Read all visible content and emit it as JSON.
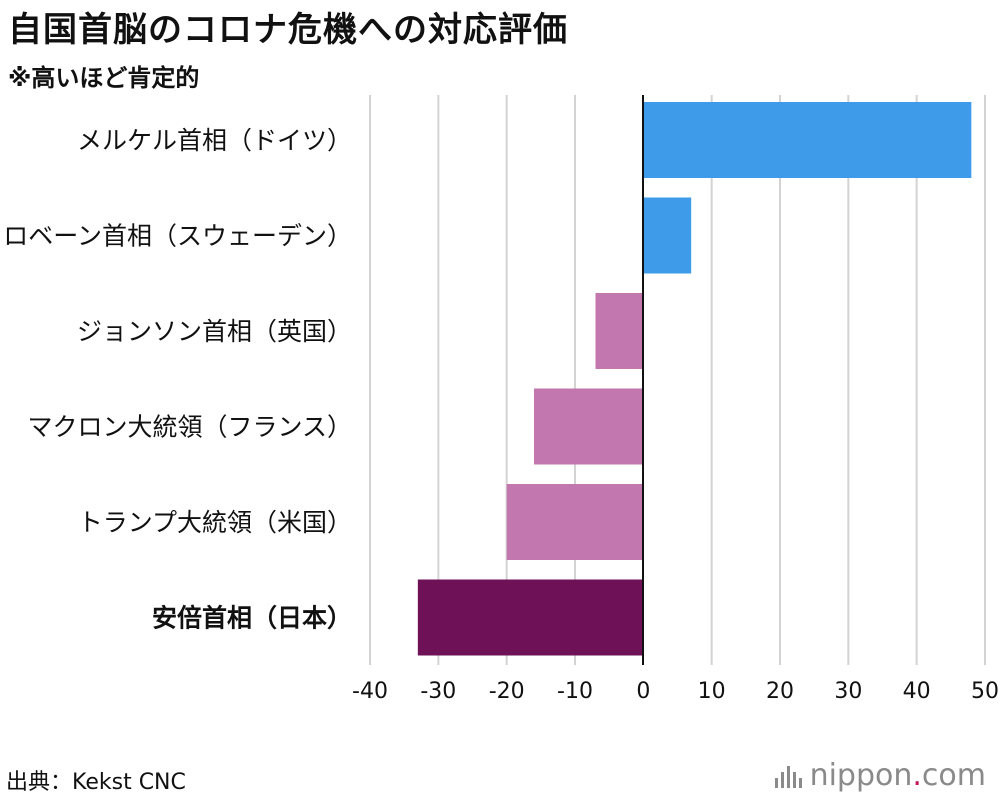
{
  "chart_data": {
    "type": "bar",
    "orientation": "horizontal",
    "title": "自国首脳のコロナ危機への対応評価",
    "subtitle": "※高いほど肯定的",
    "categories": [
      "メルケル首相（ドイツ）",
      "ロベーン首相（スウェーデン）",
      "ジョンソン首相（英国）",
      "マクロン大統領（フランス）",
      "トランプ大統領（米国）",
      "安倍首相（日本）"
    ],
    "values": [
      48,
      7,
      -7,
      -16,
      -20,
      -33
    ],
    "bar_colors": [
      "#3d9be9",
      "#3d9be9",
      "#c277ae",
      "#c277ae",
      "#c277ae",
      "#6e1157"
    ],
    "xlim": [
      -40,
      50
    ],
    "xticks": [
      -40,
      -30,
      -20,
      -10,
      0,
      10,
      20,
      30,
      40,
      50
    ],
    "xtick_labels": [
      "-40",
      "-30",
      "-20",
      "-10",
      "0",
      "10",
      "20",
      "30",
      "40",
      "50"
    ],
    "grid": true,
    "xlabel": "",
    "ylabel": ""
  },
  "source": "出典：Kekst CNC",
  "logo": {
    "main": "nippon",
    "dot": ".",
    "tld": "com"
  }
}
